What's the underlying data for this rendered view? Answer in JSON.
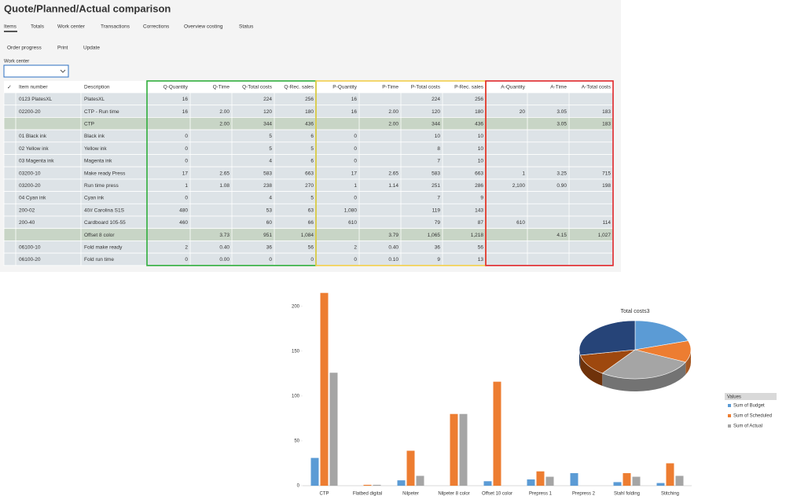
{
  "header": {
    "title": "Quote/Planned/Actual comparison"
  },
  "tabs": [
    "Items",
    "Totals",
    "Work center",
    "Transactions",
    "Corrections",
    "Overview costing",
    "Status"
  ],
  "actions": [
    "Order progress",
    "Print",
    "Update"
  ],
  "filter": {
    "label": "Work center"
  },
  "table": {
    "columns": [
      "Item number",
      "Description",
      "Q-Quantity",
      "Q-Time",
      "Q-Total costs",
      "Q-Rec. sales",
      "P-Quantity",
      "P-Time",
      "P-Total costs",
      "P-Rec. sales",
      "A-Quantity",
      "A-Time",
      "A-Total costs"
    ],
    "rows": [
      [
        "0123 PlatesXL",
        "PlatesXL",
        "16",
        null,
        "224",
        "256",
        "16",
        null,
        "224",
        "256",
        null,
        null,
        null
      ],
      [
        "02200-20",
        "CTP - Run time",
        "16",
        "2.00",
        "120",
        "180",
        "16",
        "2.00",
        "120",
        "180",
        "20",
        "3.05",
        "183"
      ],
      [
        null,
        "CTP",
        null,
        "2.00",
        "344",
        "436",
        null,
        "2.00",
        "344",
        "436",
        null,
        "3.05",
        "183"
      ],
      [
        "01 Black ink",
        "Black ink",
        "0",
        null,
        "5",
        "6",
        "0",
        null,
        "10",
        "10",
        null,
        null,
        null
      ],
      [
        "02 Yellow ink",
        "Yellow ink",
        "0",
        null,
        "5",
        "5",
        "0",
        null,
        "8",
        "10",
        null,
        null,
        null
      ],
      [
        "03 Magenta ink",
        "Magenta ink",
        "0",
        null,
        "4",
        "6",
        "0",
        null,
        "7",
        "10",
        null,
        null,
        null
      ],
      [
        "03200-10",
        "Make ready Press",
        "17",
        "2.65",
        "583",
        "663",
        "17",
        "2.65",
        "583",
        "663",
        "1",
        "3.25",
        "715"
      ],
      [
        "03200-20",
        "Run time press",
        "1",
        "1.08",
        "238",
        "270",
        "1",
        "1.14",
        "251",
        "286",
        "2,100",
        "0.90",
        "198"
      ],
      [
        "04 Cyan ink",
        "Cyan ink",
        "0",
        null,
        "4",
        "5",
        "0",
        null,
        "7",
        "9",
        null,
        null,
        null
      ],
      [
        "200-02",
        "40# Carolina S1S",
        "480",
        null,
        "53",
        "63",
        "1,080",
        null,
        "119",
        "143",
        null,
        null,
        null
      ],
      [
        "200-40",
        "Cardboard 105-55",
        "460",
        null,
        "60",
        "66",
        "610",
        null,
        "79",
        "87",
        "610",
        null,
        "114"
      ],
      [
        null,
        "Offset 8 color",
        null,
        "3.73",
        "951",
        "1,084",
        null,
        "3.79",
        "1,065",
        "1,218",
        null,
        "4.15",
        "1,027"
      ],
      [
        "06100-10",
        "Fold make ready",
        "2",
        "0.40",
        "36",
        "56",
        "2",
        "0.40",
        "36",
        "56",
        null,
        null,
        null
      ],
      [
        "06100-20",
        "Fold run time",
        "0",
        "0.00",
        "0",
        "0",
        "0",
        "0.10",
        "9",
        "13",
        null,
        null,
        null
      ]
    ]
  },
  "chart_data": [
    {
      "type": "bar",
      "categories": [
        "CTP",
        "Flatbed digital",
        "Nilpeter",
        "Nilpeter 8 color",
        "Offset 10 color",
        "Prepress 1",
        "Prepress 2",
        "Stahl folding",
        "Stitching"
      ],
      "series": [
        {
          "name": "Sum of Budget",
          "color": "#5b9bd5",
          "values": [
            31,
            0,
            6,
            0,
            5,
            7,
            14,
            4,
            3
          ]
        },
        {
          "name": "Sum of Scheduled",
          "color": "#ed7d31",
          "values": [
            215,
            1,
            39,
            80,
            116,
            16,
            0,
            14,
            25
          ]
        },
        {
          "name": "Sum of Actual",
          "color": "#a5a5a5",
          "values": [
            126,
            1,
            11,
            80,
            0,
            10,
            0,
            10,
            11
          ]
        }
      ],
      "ylim": [
        0,
        220
      ],
      "yticks": [
        0,
        50,
        100,
        150,
        200
      ],
      "legend_title": "Values",
      "legend": "right"
    },
    {
      "type": "pie",
      "title": "Total costs3",
      "values": [
        20,
        12,
        28,
        12,
        28
      ],
      "colors": [
        "#5b9bd5",
        "#ed7d31",
        "#a5a5a5",
        "#9e480e",
        "#264478"
      ]
    }
  ]
}
